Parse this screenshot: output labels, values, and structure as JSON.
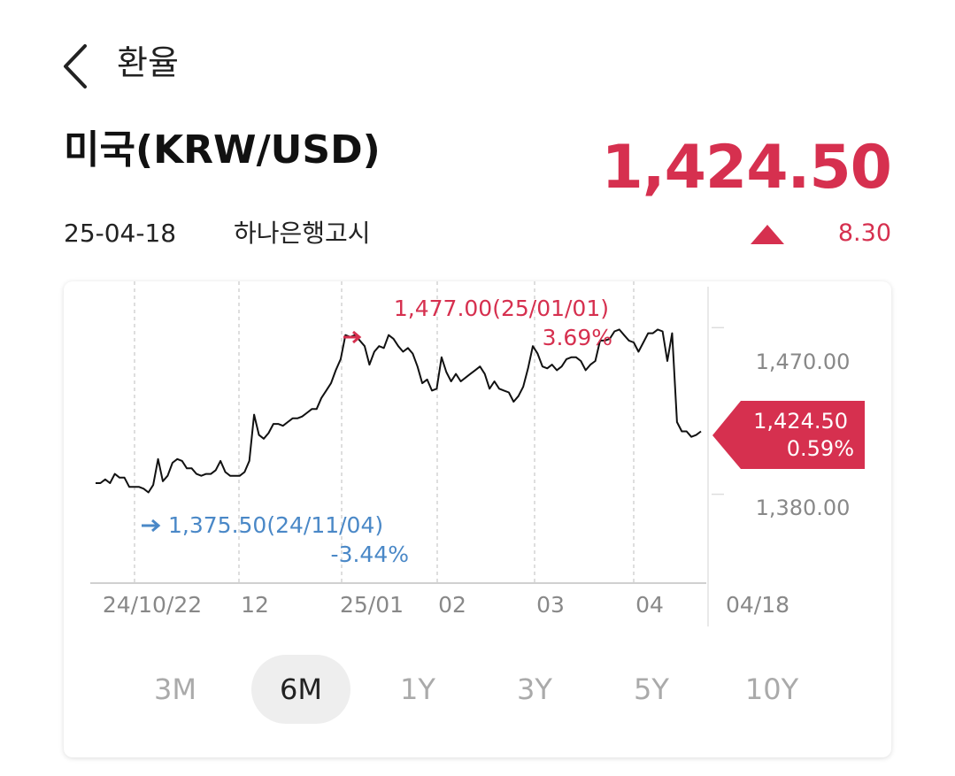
{
  "header": {
    "title": "환율"
  },
  "currency": {
    "name": "미국(KRW/USD)",
    "price": "1,424.50",
    "date": "25-04-18",
    "source": "하나은행고시",
    "change": "8.30",
    "change_direction": "up"
  },
  "colors": {
    "up": "#d6304f",
    "low": "#4a88c7",
    "line": "#111111",
    "grid": "#d8d8d8",
    "axis_text": "#888888"
  },
  "chart_data": {
    "type": "line",
    "x_tick_labels": [
      "24/10/22",
      "12",
      "25/01",
      "02",
      "03",
      "04",
      "04/18"
    ],
    "y_tick_labels": [
      "1,470.00",
      "1,380.00"
    ],
    "y_ticks": [
      1470.0,
      1380.0
    ],
    "ylim": [
      1332,
      1495
    ],
    "high": {
      "value": "1,477.00(25/01/01)",
      "pct": "3.69%"
    },
    "low": {
      "value": "1,375.50(24/11/04)",
      "pct": "-3.44%"
    },
    "current": {
      "value": "1,424.50",
      "pct": "0.59%"
    },
    "values": [
      1386,
      1386,
      1388,
      1386,
      1391,
      1389,
      1389,
      1384,
      1384,
      1384,
      1383,
      1381,
      1385,
      1399,
      1387,
      1390,
      1397,
      1399,
      1398,
      1394,
      1394,
      1391,
      1390,
      1391,
      1391,
      1393,
      1398,
      1392,
      1390,
      1390,
      1390,
      1392,
      1398,
      1423,
      1412,
      1410,
      1413,
      1418,
      1418,
      1417,
      1419,
      1421,
      1421,
      1422,
      1424,
      1426,
      1426,
      1432,
      1436,
      1440,
      1447,
      1453,
      1466,
      1465,
      1466,
      1463,
      1460,
      1450,
      1457,
      1460,
      1459,
      1466,
      1464,
      1460,
      1457,
      1459,
      1456,
      1449,
      1440,
      1442,
      1436,
      1437,
      1454,
      1446,
      1441,
      1445,
      1441,
      1443,
      1445,
      1447,
      1449,
      1445,
      1437,
      1441,
      1437,
      1436,
      1435,
      1430,
      1433,
      1438,
      1448,
      1460,
      1456,
      1449,
      1448,
      1450,
      1447,
      1449,
      1453,
      1454,
      1454,
      1452,
      1447,
      1450,
      1452,
      1463,
      1463,
      1464,
      1468,
      1469,
      1466,
      1463,
      1462,
      1457,
      1462,
      1467,
      1467,
      1469,
      1468,
      1452,
      1467,
      1419,
      1414,
      1414,
      1411,
      1412,
      1414
    ]
  },
  "periods": [
    {
      "label": "3M",
      "active": false
    },
    {
      "label": "6M",
      "active": true
    },
    {
      "label": "1Y",
      "active": false
    },
    {
      "label": "3Y",
      "active": false
    },
    {
      "label": "5Y",
      "active": false
    },
    {
      "label": "10Y",
      "active": false
    }
  ]
}
